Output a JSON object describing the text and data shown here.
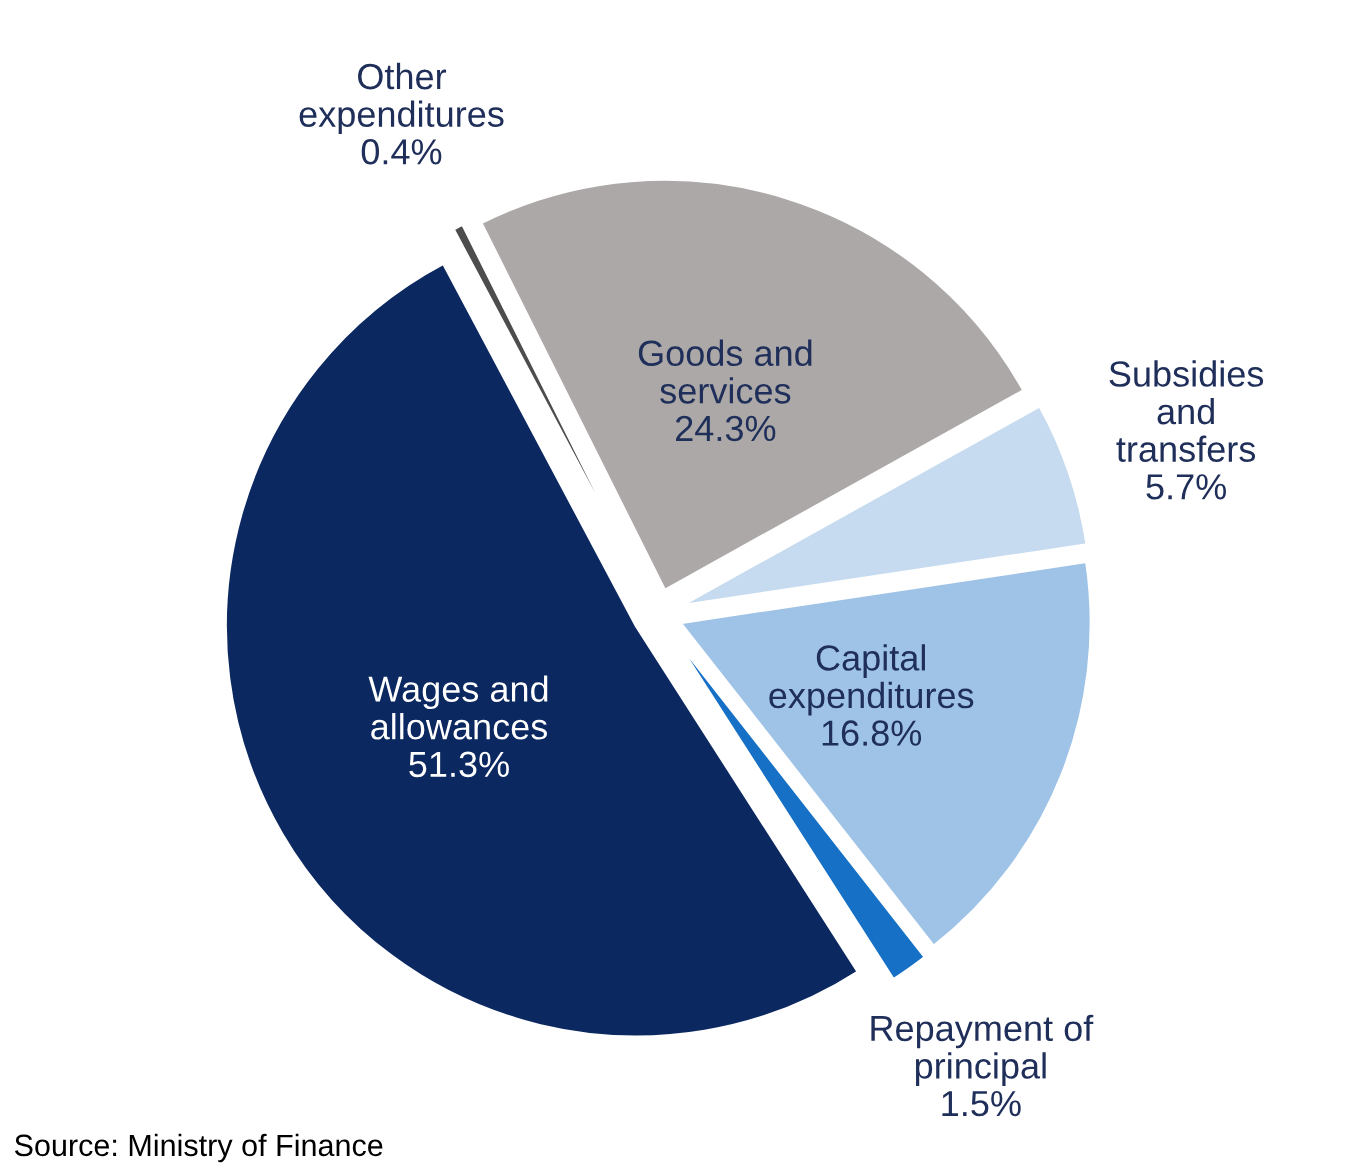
{
  "chart_data": {
    "type": "pie",
    "categories": [
      "Other expenditures",
      "Goods and services",
      "Subsidies and transfers",
      "Capital expenditures",
      "Repayment of principal",
      "Wages and allowances"
    ],
    "values": [
      0.4,
      24.3,
      5.7,
      16.8,
      1.5,
      51.3
    ],
    "colors": [
      "#4d4d4d",
      "#aba8a7",
      "#c6dbef",
      "#9fc3e7",
      "#1570c6",
      "#0b2860"
    ],
    "value_labels": [
      "0.4%",
      "24.3%",
      "5.7%",
      "16.8%",
      "1.5%",
      "51.3%"
    ],
    "annotations": [
      "Source: Ministry of Finance"
    ]
  }
}
